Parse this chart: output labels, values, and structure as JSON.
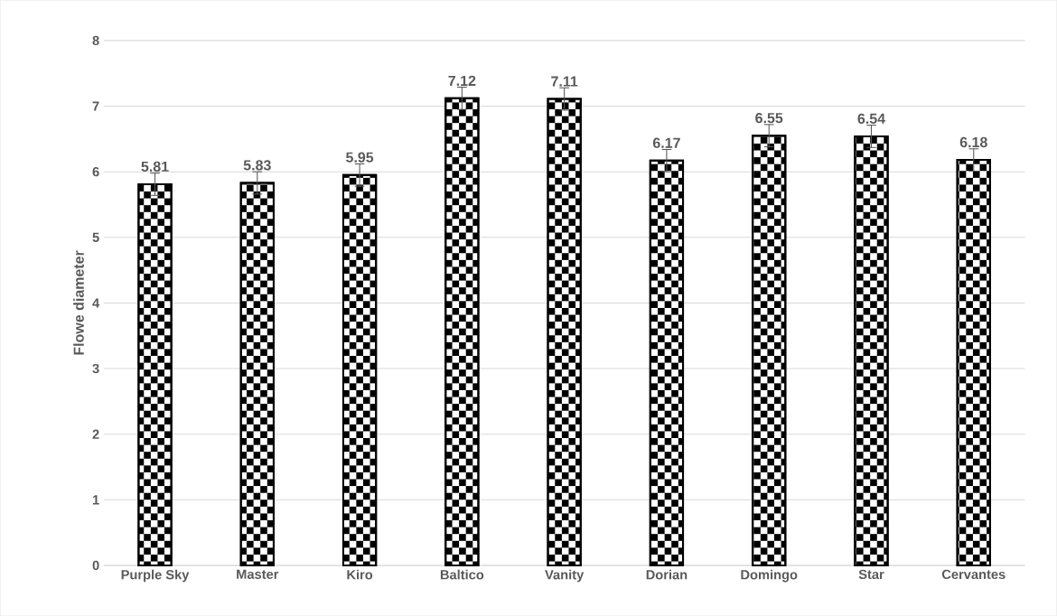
{
  "chart_data": {
    "type": "bar",
    "ylabel": "Flowe diameter",
    "categories": [
      "Purple Sky",
      "Master",
      "Kiro",
      "Baltico",
      "Vanity",
      "Dorian",
      "Domingo",
      "Star",
      "Cervantes"
    ],
    "values": [
      5.81,
      5.83,
      5.95,
      7.12,
      7.11,
      6.17,
      6.55,
      6.54,
      6.18
    ],
    "errors": [
      0.17,
      0.17,
      0.17,
      0.17,
      0.17,
      0.17,
      0.17,
      0.17,
      0.17
    ],
    "color": "#000000",
    "grid": "y",
    "data_labels": true,
    "ylim": [
      0,
      8
    ],
    "yticks": [
      0,
      1,
      2,
      3,
      4,
      5,
      6,
      7,
      8
    ]
  }
}
